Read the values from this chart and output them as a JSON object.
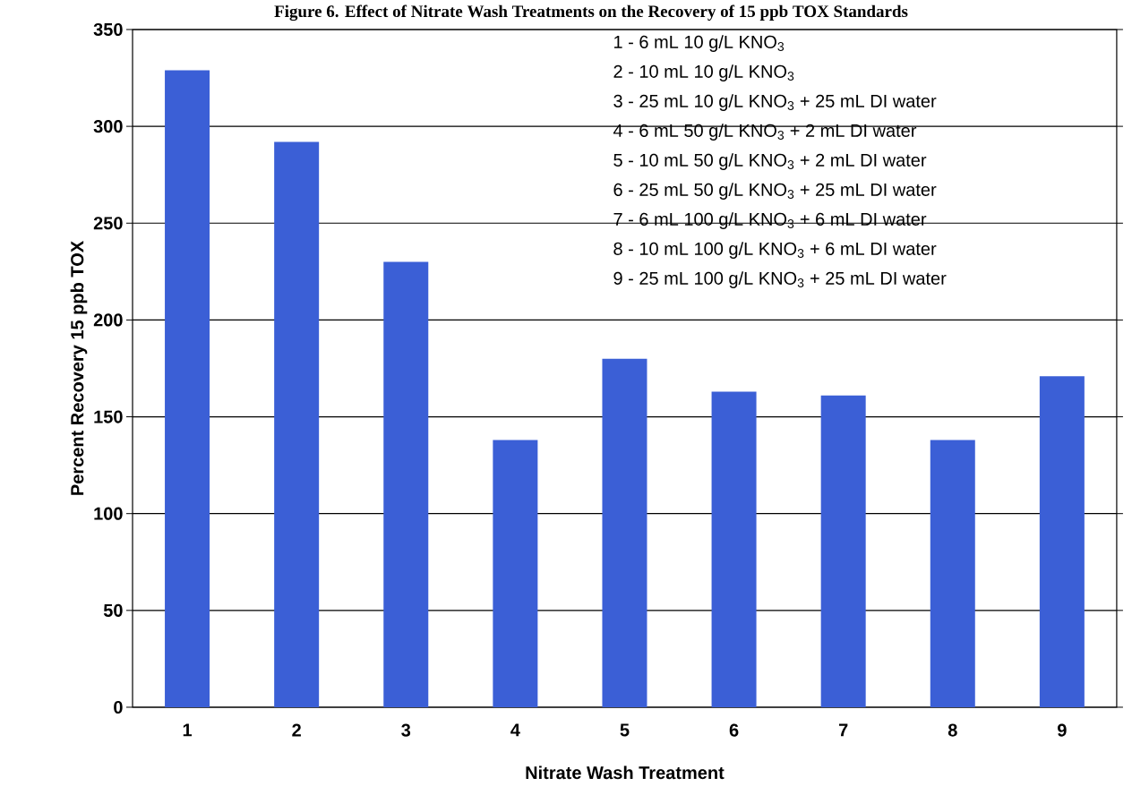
{
  "chart_data": {
    "type": "bar",
    "title": "Figure 6. Effect of Nitrate Wash Treatments on the Recovery of 15 ppb TOX Standards",
    "xlabel": "Nitrate Wash Treatment",
    "ylabel": "Percent Recovery 15 ppb TOX",
    "categories": [
      "1",
      "2",
      "3",
      "4",
      "5",
      "6",
      "7",
      "8",
      "9"
    ],
    "values": [
      329,
      292,
      230,
      138,
      180,
      163,
      161,
      138,
      171
    ],
    "color": "#3b5fd6",
    "ylim": [
      0,
      350
    ],
    "yticks": [
      0,
      50,
      100,
      150,
      200,
      250,
      300,
      350
    ],
    "grid": "y",
    "annotations": [
      "1 - 6 mL 10 g/L KNO$_{3}$",
      "2 - 10 mL 10 g/L KNO$_{3}$",
      "3 - 25 mL 10 g/L KNO$_{3}$ + 25 mL DI water",
      "4 - 6 mL 50 g/L KNO$_{3}$ + 2 mL DI water",
      "5 - 10 mL 50 g/L KNO$_{3}$ + 2 mL DI water",
      "6 - 25 mL 50 g/L KNO$_{3}$ + 25 mL DI water",
      "7 - 6 mL 100 g/L KNO$_{3}$ + 6 mL DI water",
      "8 - 10 mL 100 g/L KNO$_{3}$ + 6 mL DI water",
      "9 - 25 mL 100 g/L KNO$_{3}$ + 25 mL DI water"
    ]
  }
}
